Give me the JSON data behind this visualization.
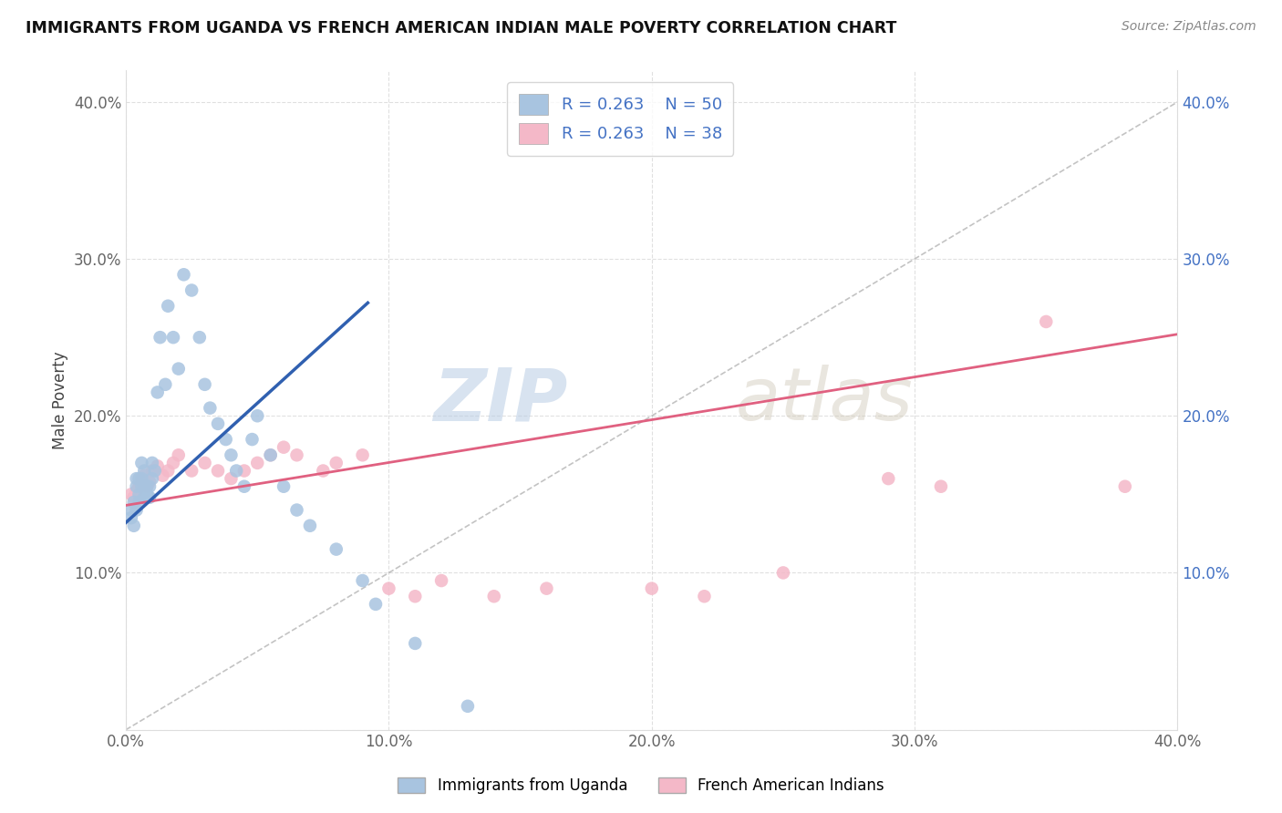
{
  "title": "IMMIGRANTS FROM UGANDA VS FRENCH AMERICAN INDIAN MALE POVERTY CORRELATION CHART",
  "source": "Source: ZipAtlas.com",
  "xlabel": "",
  "ylabel": "Male Poverty",
  "xlim": [
    0.0,
    0.4
  ],
  "ylim": [
    0.0,
    0.42
  ],
  "x_ticks": [
    0.0,
    0.1,
    0.2,
    0.3,
    0.4
  ],
  "x_tick_labels": [
    "0.0%",
    "10.0%",
    "20.0%",
    "30.0%",
    "40.0%"
  ],
  "y_ticks": [
    0.0,
    0.1,
    0.2,
    0.3,
    0.4
  ],
  "y_tick_labels": [
    "",
    "10.0%",
    "20.0%",
    "30.0%",
    "40.0%"
  ],
  "legend_r1": "R = 0.263",
  "legend_n1": "N = 50",
  "legend_r2": "R = 0.263",
  "legend_n2": "N = 38",
  "blue_color": "#a8c4e0",
  "pink_color": "#f4b8c8",
  "blue_line_color": "#3060b0",
  "pink_line_color": "#e06080",
  "watermark_zip": "ZIP",
  "watermark_atlas": "atlas",
  "uganda_x": [
    0.002,
    0.002,
    0.003,
    0.003,
    0.004,
    0.004,
    0.004,
    0.005,
    0.005,
    0.005,
    0.006,
    0.006,
    0.006,
    0.007,
    0.007,
    0.007,
    0.008,
    0.008,
    0.009,
    0.009,
    0.01,
    0.01,
    0.011,
    0.012,
    0.013,
    0.015,
    0.016,
    0.018,
    0.02,
    0.022,
    0.025,
    0.028,
    0.03,
    0.032,
    0.035,
    0.038,
    0.04,
    0.042,
    0.045,
    0.048,
    0.05,
    0.055,
    0.06,
    0.065,
    0.07,
    0.08,
    0.09,
    0.095,
    0.11,
    0.13
  ],
  "uganda_y": [
    0.135,
    0.14,
    0.145,
    0.13,
    0.14,
    0.155,
    0.16,
    0.145,
    0.15,
    0.16,
    0.155,
    0.16,
    0.17,
    0.148,
    0.155,
    0.165,
    0.15,
    0.155,
    0.148,
    0.155,
    0.16,
    0.17,
    0.165,
    0.215,
    0.25,
    0.22,
    0.27,
    0.25,
    0.23,
    0.29,
    0.28,
    0.25,
    0.22,
    0.205,
    0.195,
    0.185,
    0.175,
    0.165,
    0.155,
    0.185,
    0.2,
    0.175,
    0.155,
    0.14,
    0.13,
    0.115,
    0.095,
    0.08,
    0.055,
    0.015
  ],
  "french_x": [
    0.002,
    0.003,
    0.004,
    0.005,
    0.006,
    0.007,
    0.008,
    0.009,
    0.01,
    0.012,
    0.014,
    0.016,
    0.018,
    0.02,
    0.025,
    0.03,
    0.035,
    0.04,
    0.045,
    0.05,
    0.055,
    0.06,
    0.065,
    0.075,
    0.08,
    0.09,
    0.1,
    0.11,
    0.12,
    0.14,
    0.16,
    0.2,
    0.22,
    0.25,
    0.29,
    0.31,
    0.35,
    0.38
  ],
  "french_y": [
    0.15,
    0.148,
    0.152,
    0.155,
    0.16,
    0.162,
    0.155,
    0.158,
    0.165,
    0.168,
    0.162,
    0.165,
    0.17,
    0.175,
    0.165,
    0.17,
    0.165,
    0.16,
    0.165,
    0.17,
    0.175,
    0.18,
    0.175,
    0.165,
    0.17,
    0.175,
    0.09,
    0.085,
    0.095,
    0.085,
    0.09,
    0.09,
    0.085,
    0.1,
    0.16,
    0.155,
    0.26,
    0.155
  ],
  "blue_line_x0": 0.0,
  "blue_line_x1": 0.092,
  "blue_line_y0": 0.132,
  "blue_line_y1": 0.272,
  "pink_line_x0": 0.0,
  "pink_line_x1": 0.4,
  "pink_line_y0": 0.143,
  "pink_line_y1": 0.252
}
